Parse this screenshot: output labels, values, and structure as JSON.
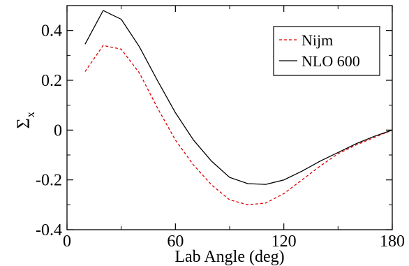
{
  "chart_data": {
    "type": "line",
    "title": "",
    "xlabel": "Lab Angle (deg)",
    "ylabel_main": "Σ",
    "ylabel_sub": "x",
    "xlim": [
      0,
      180
    ],
    "ylim": [
      -0.4,
      0.5
    ],
    "xticks": [
      0,
      60,
      120,
      180
    ],
    "xtick_labels": [
      "0",
      "60",
      "120",
      "180"
    ],
    "yticks": [
      -0.4,
      -0.2,
      0,
      0.2,
      0.4
    ],
    "ytick_labels": [
      "-0.4",
      "-0.2",
      "0",
      "0.2",
      "0.4"
    ],
    "grid": false,
    "legend_position": "top-right",
    "x": [
      10,
      20,
      30,
      40,
      50,
      60,
      70,
      80,
      90,
      100,
      110,
      120,
      130,
      140,
      150,
      160,
      170,
      180
    ],
    "series": [
      {
        "name": "Nijm",
        "color": "#e00000",
        "dash": "dashed",
        "values": [
          0.235,
          0.34,
          0.325,
          0.23,
          0.09,
          -0.04,
          -0.14,
          -0.22,
          -0.28,
          -0.3,
          -0.293,
          -0.255,
          -0.2,
          -0.145,
          -0.095,
          -0.06,
          -0.03,
          0.0
        ]
      },
      {
        "name": "NLO 600",
        "color": "#000000",
        "dash": "solid",
        "values": [
          0.345,
          0.48,
          0.445,
          0.335,
          0.2,
          0.07,
          -0.04,
          -0.125,
          -0.19,
          -0.215,
          -0.218,
          -0.2,
          -0.165,
          -0.125,
          -0.09,
          -0.055,
          -0.025,
          0.0
        ]
      }
    ]
  }
}
